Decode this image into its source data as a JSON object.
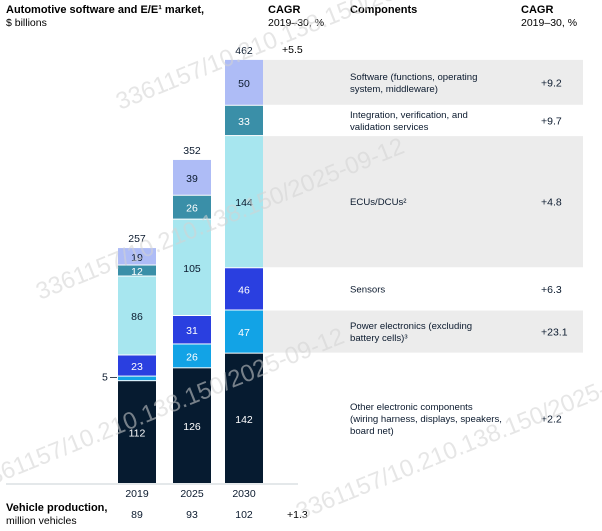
{
  "header": {
    "title": "Automotive software and E/E¹ market,",
    "unit": "$ billions",
    "cagr_mid_title": "CAGR",
    "cagr_mid_sub": "2019–30, %",
    "components_title": "Components",
    "cagr_right_title": "CAGR",
    "cagr_right_sub": "2019–30, %"
  },
  "chart_data": {
    "type": "bar",
    "stacked": true,
    "categories": [
      "2019",
      "2025",
      "2030"
    ],
    "totals": [
      257,
      352,
      462
    ],
    "total_cagr": "+5.5",
    "series": [
      {
        "name": "Other electronic components (wiring harness, displays, speakers, board net)",
        "values": [
          112,
          126,
          142
        ],
        "cagr": "+2.2",
        "color": "#061b30",
        "label_color": "#ffffff"
      },
      {
        "name": "Power electronics (excluding battery cells)³",
        "values": [
          5,
          26,
          47
        ],
        "cagr": "+23.1",
        "color": "#12a3e6",
        "label_color": "#ffffff"
      },
      {
        "name": "Sensors",
        "values": [
          23,
          31,
          46
        ],
        "cagr": "+6.3",
        "color": "#2a3fe0",
        "label_color": "#ffffff"
      },
      {
        "name": "ECUs/DCUs²",
        "values": [
          86,
          105,
          144
        ],
        "cagr": "+4.8",
        "color": "#a7e6ef",
        "label_color": "#0b1a2e"
      },
      {
        "name": "Integration, verification, and validation services",
        "values": [
          12,
          26,
          33
        ],
        "cagr": "+9.7",
        "color": "#3a8fa8",
        "label_color": "#ffffff"
      },
      {
        "name": "Software (functions, operating system, middleware)",
        "values": [
          19,
          39,
          50
        ],
        "cagr": "+9.2",
        "color": "#aebcf6",
        "label_color": "#0b1a2e"
      }
    ],
    "small_outside_label": "5"
  },
  "components": [
    {
      "lines": [
        "Other electronic components",
        "(wiring harness, displays, speakers,",
        "board net)"
      ],
      "cagr": "+2.2"
    },
    {
      "lines": [
        "Power electronics (excluding",
        "battery cells)³"
      ],
      "cagr": "+23.1"
    },
    {
      "lines": [
        "Sensors"
      ],
      "cagr": "+6.3"
    },
    {
      "lines": [
        "ECUs/DCUs²"
      ],
      "cagr": "+4.8"
    },
    {
      "lines": [
        "Integration, verification, and",
        "validation services"
      ],
      "cagr": "+9.7"
    },
    {
      "lines": [
        "Software (functions, operating",
        "system, middleware)"
      ],
      "cagr": "+9.2"
    }
  ],
  "footer": {
    "label": "Vehicle production,",
    "sub": "million vehicles",
    "values": [
      "89",
      "93",
      "102"
    ],
    "cagr": "+1.3"
  },
  "watermark": {
    "text": "3361157/10.210.138.150/2025-09-12"
  },
  "colors": {
    "band": "#ececec",
    "text": "#0b1a2e"
  }
}
